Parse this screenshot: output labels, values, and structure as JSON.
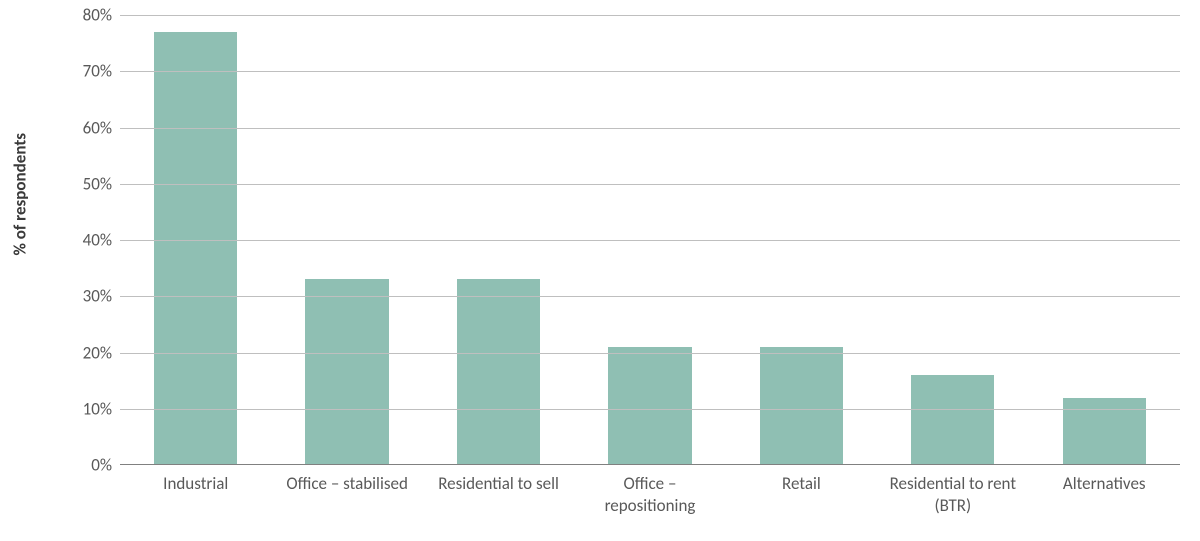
{
  "chart": {
    "type": "bar",
    "ylabel": "% of respondents",
    "ylabel_fontsize": 17,
    "ylabel_fontweight": "bold",
    "ylabel_color": "#3a3a3a",
    "ylim": [
      0,
      80
    ],
    "ytick_step": 10,
    "yticks": [
      0,
      10,
      20,
      30,
      40,
      50,
      60,
      70,
      80
    ],
    "ytick_labels": [
      "0%",
      "10%",
      "20%",
      "30%",
      "40%",
      "50%",
      "60%",
      "70%",
      "80%"
    ],
    "tick_fontsize": 17,
    "tick_color": "#595959",
    "grid_color": "#bfbfbf",
    "axis_color": "#808080",
    "background_color": "#ffffff",
    "bar_color": "#8fbfb3",
    "bar_width": 0.55,
    "categories": [
      "Industrial",
      "Office – stabilised",
      "Residential to sell",
      "Office – repositioning",
      "Retail",
      "Residential to rent (BTR)",
      "Alternatives"
    ],
    "values": [
      77,
      33,
      33,
      21,
      21,
      16,
      12
    ]
  }
}
